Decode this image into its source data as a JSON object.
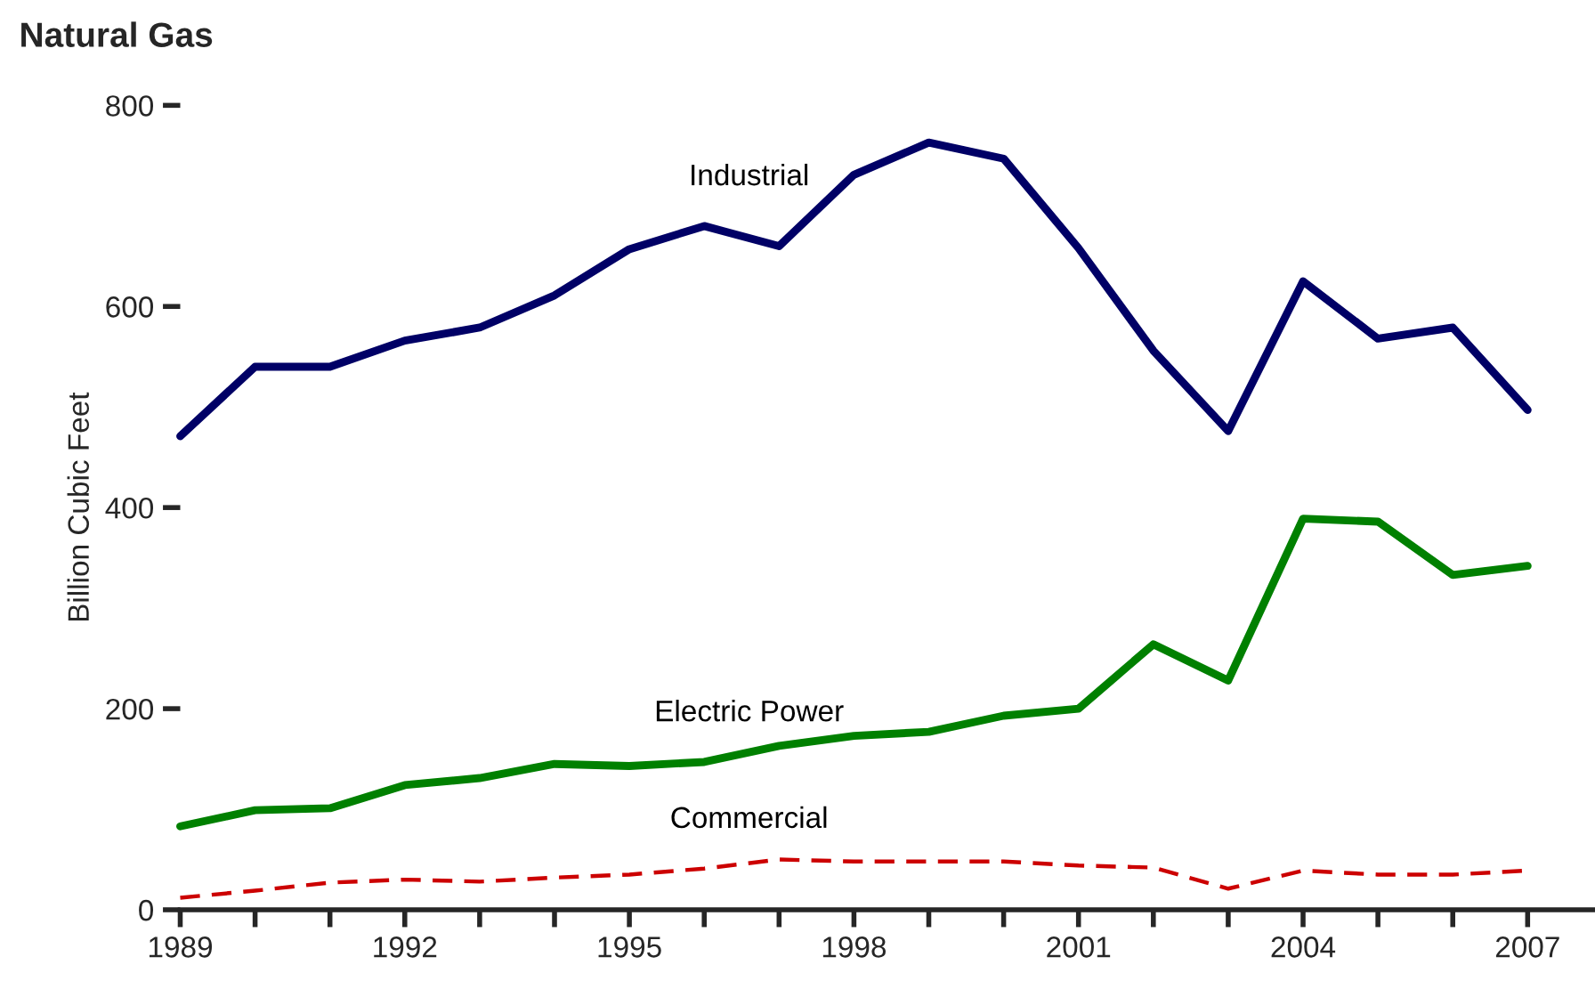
{
  "chart_data": {
    "type": "line",
    "title": "Natural Gas",
    "ylabel": "Billion Cubic Feet",
    "x": [
      1989,
      1990,
      1991,
      1992,
      1993,
      1994,
      1995,
      1996,
      1997,
      1998,
      1999,
      2000,
      2001,
      2002,
      2003,
      2004,
      2005,
      2006,
      2007
    ],
    "series": [
      {
        "name": "Industrial",
        "color": "#000066",
        "line_style": "solid",
        "values": [
          471,
          540,
          540,
          566,
          579,
          611,
          657,
          680,
          660,
          731,
          763,
          747,
          658,
          556,
          476,
          625,
          568,
          579,
          497
        ]
      },
      {
        "name": "Electric Power",
        "color": "#008000",
        "line_style": "solid",
        "values": [
          83,
          99,
          101,
          124,
          131,
          145,
          143,
          147,
          163,
          173,
          177,
          193,
          200,
          264,
          228,
          389,
          386,
          333,
          342
        ]
      },
      {
        "name": "Commercial",
        "color": "#cc0000",
        "line_style": "dashed",
        "values": [
          12,
          19,
          27,
          30,
          28,
          32,
          35,
          41,
          50,
          48,
          48,
          48,
          44,
          42,
          21,
          39,
          35,
          35,
          39
        ]
      }
    ],
    "xlim": [
      1989,
      2007.9
    ],
    "ylim": [
      0,
      800
    ],
    "xticks": [
      1989,
      {
        "value": 1990,
        "label": null
      },
      {
        "value": 1991,
        "label": null
      },
      1992,
      {
        "value": 1993,
        "label": null
      },
      {
        "value": 1994,
        "label": null
      },
      1995,
      {
        "value": 1996,
        "label": null
      },
      {
        "value": 1997,
        "label": null
      },
      1998,
      {
        "value": 1999,
        "label": null
      },
      {
        "value": 2000,
        "label": null
      },
      2001,
      {
        "value": 2002,
        "label": null
      },
      {
        "value": 2003,
        "label": null
      },
      2004,
      {
        "value": 2005,
        "label": null
      },
      {
        "value": 2006,
        "label": null
      },
      2007
    ],
    "yticks": [
      0,
      200,
      400,
      600,
      800
    ],
    "grid": false,
    "legend": false
  }
}
